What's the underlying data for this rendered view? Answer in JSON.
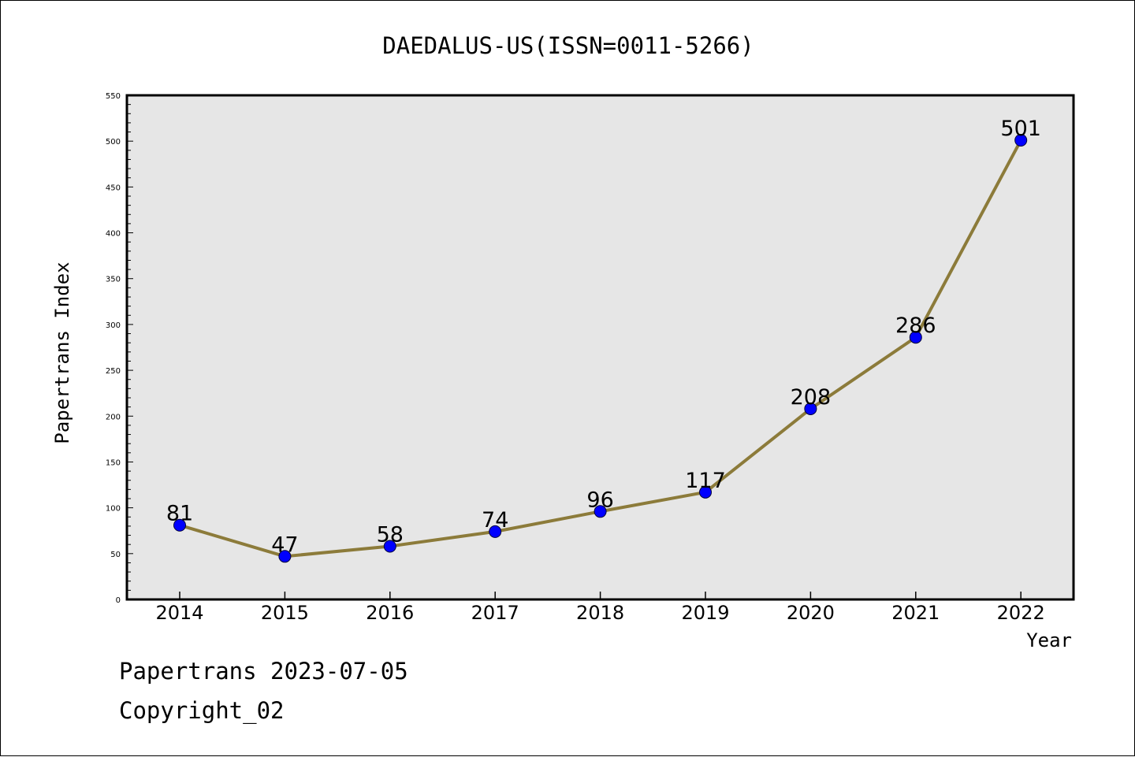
{
  "chart_data": {
    "type": "line",
    "title": "DAEDALUS-US(ISSN=0011-5266)",
    "xlabel": "Year",
    "ylabel": "Papertrans Index",
    "categories": [
      "2014",
      "2015",
      "2016",
      "2017",
      "2018",
      "2019",
      "2020",
      "2021",
      "2022"
    ],
    "values": [
      81,
      47,
      58,
      74,
      96,
      117,
      208,
      286,
      501
    ],
    "data_labels": [
      "81",
      "47",
      "58",
      "74",
      "96",
      "117",
      "208",
      "286",
      "501"
    ],
    "ylim": [
      0,
      550
    ],
    "yticks": [
      "0",
      "50",
      "100",
      "150",
      "200",
      "250",
      "300",
      "350",
      "400",
      "450",
      "500",
      "550"
    ],
    "grid": false,
    "colors": {
      "line": "#8c7b3a",
      "marker": "#0000ff",
      "plot_bg": "#e6e6e6"
    }
  },
  "footer": {
    "line1": "Papertrans 2023-07-05",
    "line2": "Copyright_02"
  }
}
